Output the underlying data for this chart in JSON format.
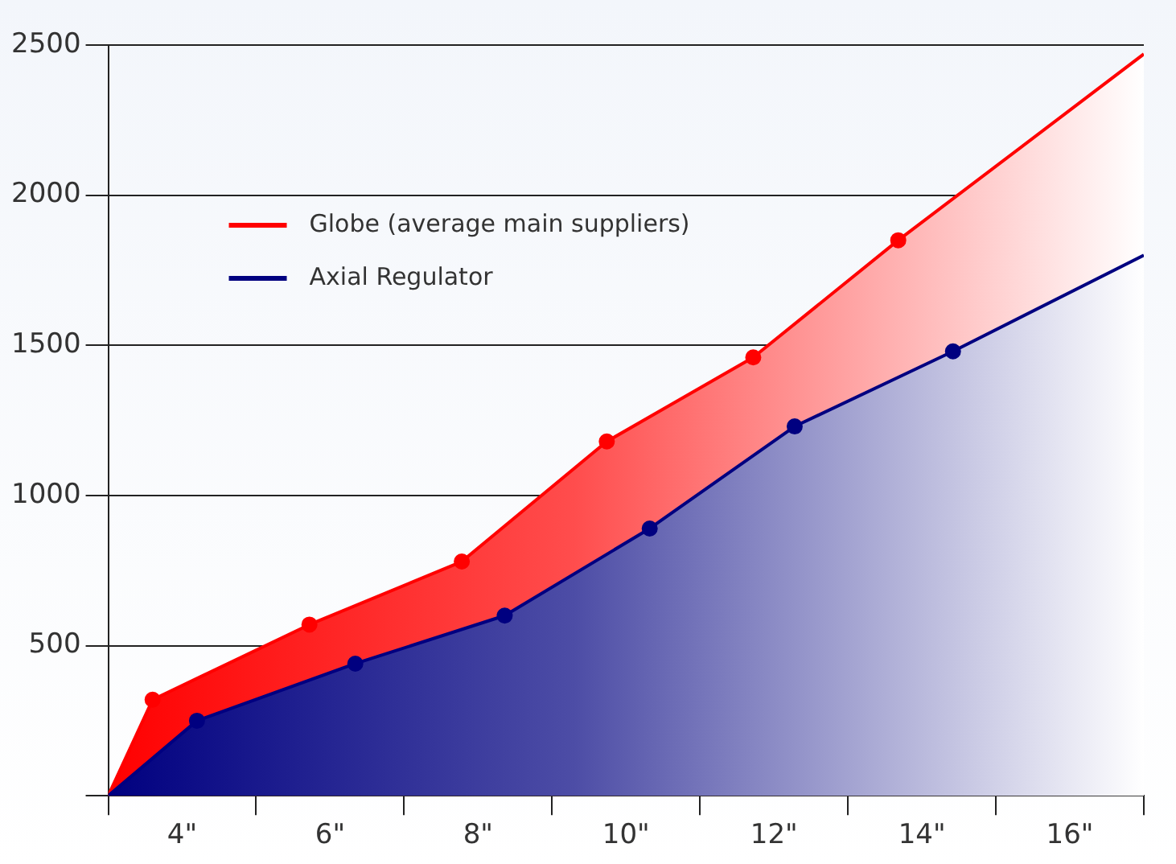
{
  "chart_data": {
    "type": "area",
    "xlim": [
      3,
      17
    ],
    "xticks": [
      {
        "value": 3,
        "label": null
      },
      {
        "value": 4,
        "label": "4\""
      },
      {
        "value": 5,
        "label": null
      },
      {
        "value": 6,
        "label": "6\""
      },
      {
        "value": 7,
        "label": null
      },
      {
        "value": 8,
        "label": "8\""
      },
      {
        "value": 9,
        "label": null
      },
      {
        "value": 10,
        "label": "10\""
      },
      {
        "value": 11,
        "label": null
      },
      {
        "value": 12,
        "label": "12\""
      },
      {
        "value": 13,
        "label": null
      },
      {
        "value": 14,
        "label": "14\""
      },
      {
        "value": 15,
        "label": null
      },
      {
        "value": 16,
        "label": "16\""
      },
      {
        "value": 17,
        "label": null
      }
    ],
    "ylim": [
      0,
      2500
    ],
    "yticks": [
      {
        "value": 0,
        "label": null
      },
      500,
      1000,
      1500,
      2000,
      2500
    ],
    "grid": "y",
    "legend": "top left",
    "marker": "circle",
    "line_style": "solid",
    "series": [
      {
        "name": "Globe (average main suppliers)",
        "color": "#ff0000",
        "x": [
          3,
          3.6,
          5.72,
          7.78,
          9.74,
          11.72,
          13.68,
          17
        ],
        "values": [
          0,
          320,
          570,
          780,
          1180,
          1460,
          1850,
          2470
        ]
      },
      {
        "name": "Axial Regulator",
        "color": "#000080",
        "x": [
          3,
          4.2,
          6.34,
          8.36,
          10.32,
          12.28,
          14.42,
          17
        ],
        "values": [
          0,
          250,
          440,
          600,
          890,
          1230,
          1480,
          1800
        ]
      }
    ]
  }
}
